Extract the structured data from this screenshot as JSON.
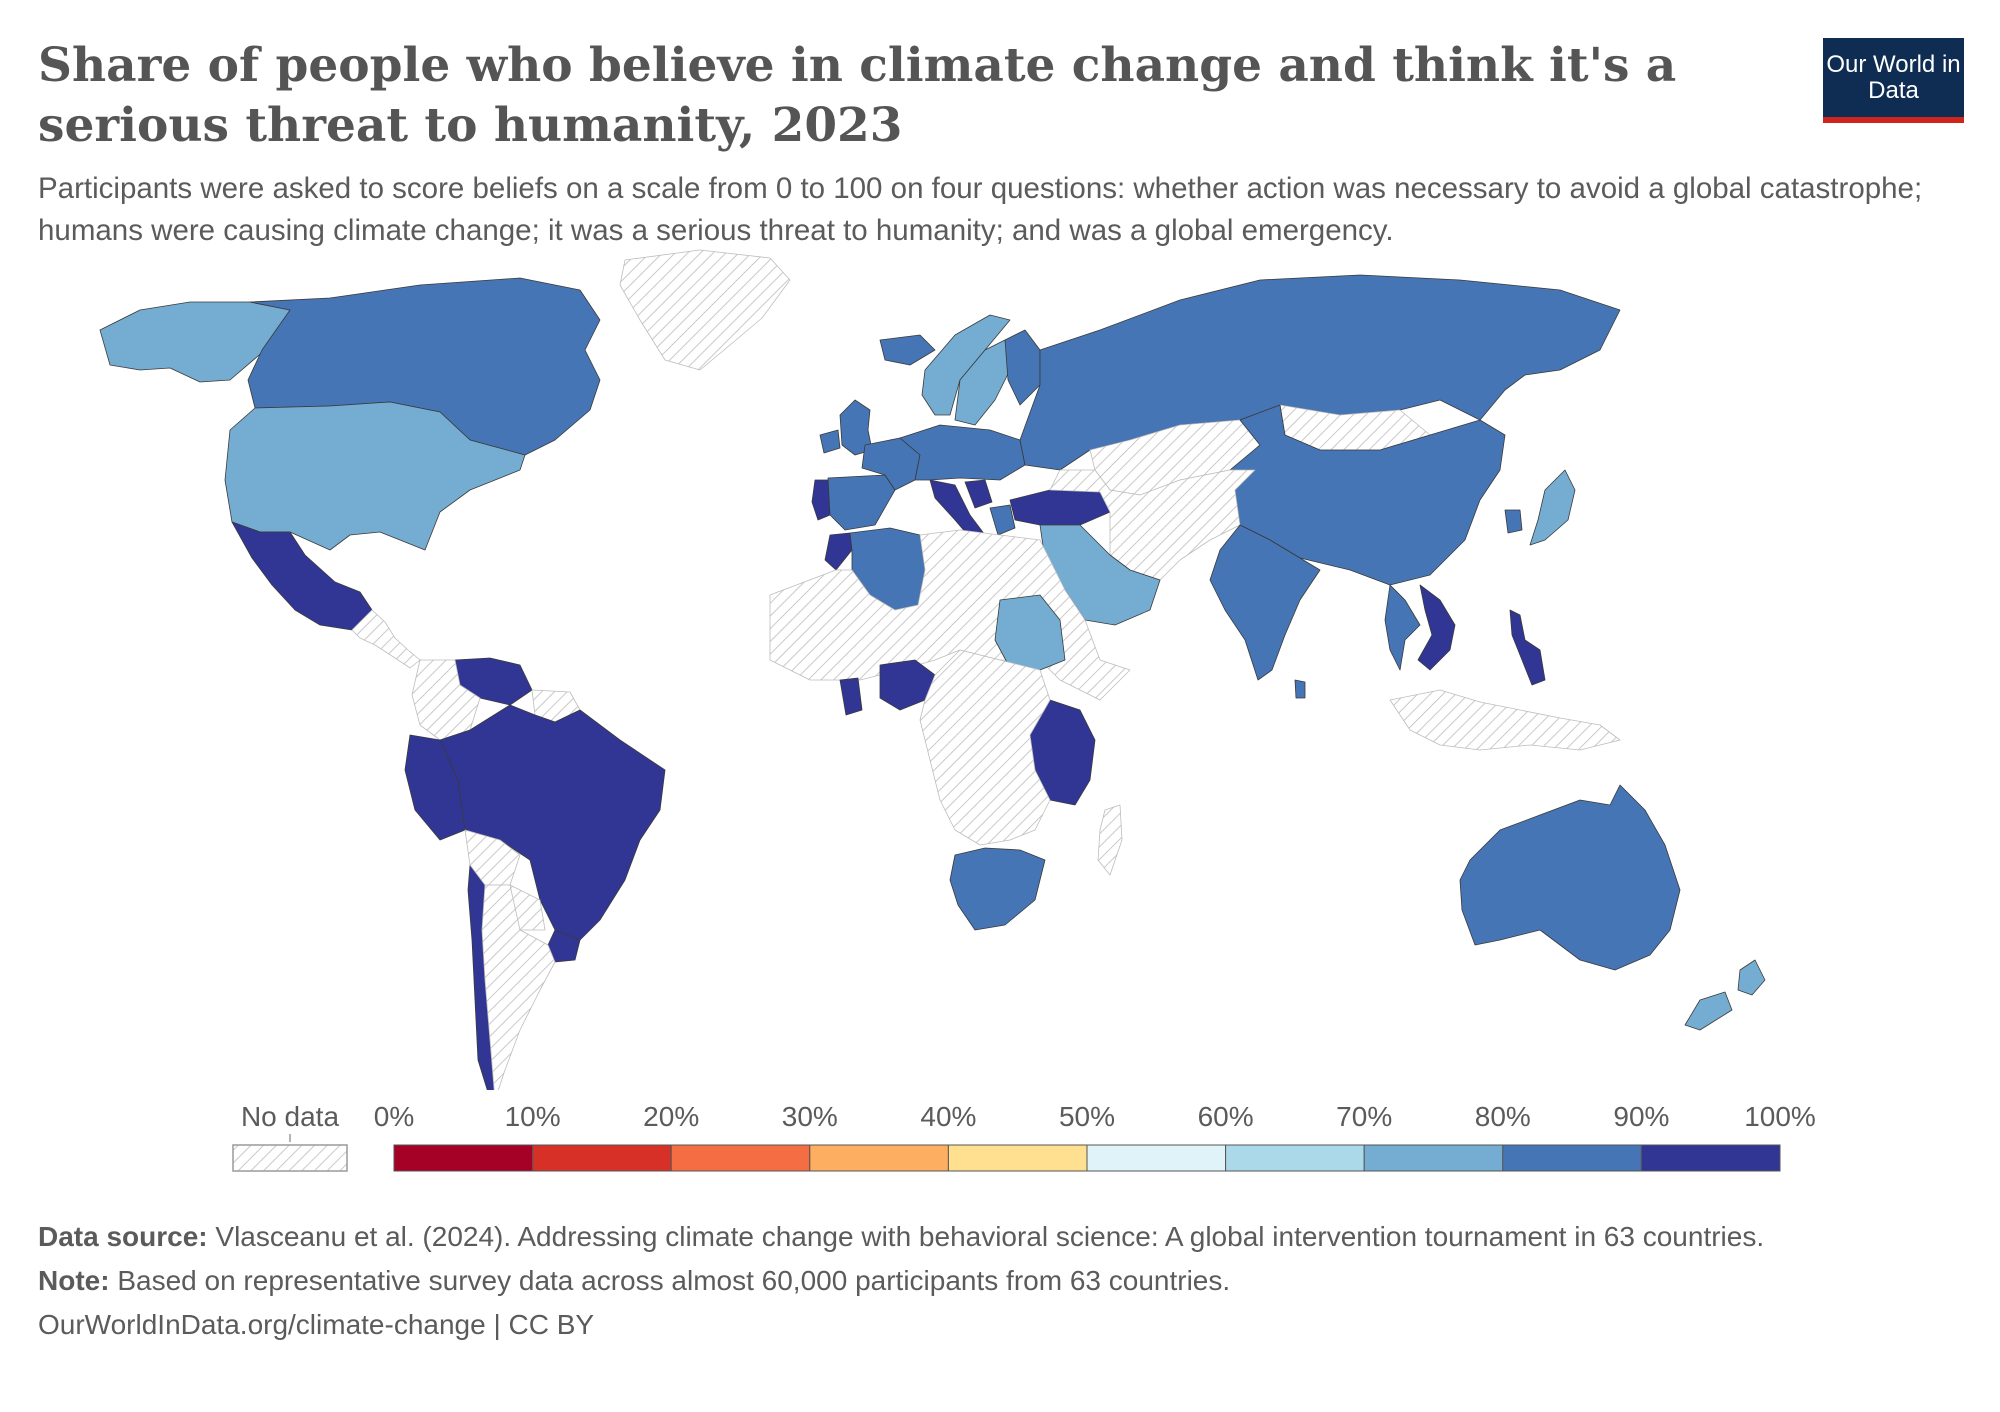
{
  "header": {
    "title": "Share of people who believe in climate change and think it's a serious threat to humanity, 2023",
    "subtitle": "Participants were asked to score beliefs on a scale from 0 to 100 on four questions: whether action was necessary to avoid a global catastrophe; humans were causing climate change; it was a serious threat to humanity; and was a global emergency."
  },
  "logo": {
    "text": "Our World in Data",
    "bg_color": "#0f2d52",
    "accent_color": "#ce261e"
  },
  "legend": {
    "no_data_label": "No data",
    "tick_labels": [
      "0%",
      "10%",
      "20%",
      "30%",
      "40%",
      "50%",
      "60%",
      "70%",
      "80%",
      "90%",
      "100%"
    ],
    "bins": [
      {
        "from": 0,
        "to": 10,
        "color": "#a50026"
      },
      {
        "from": 10,
        "to": 20,
        "color": "#d73027"
      },
      {
        "from": 20,
        "to": 30,
        "color": "#f46d43"
      },
      {
        "from": 30,
        "to": 40,
        "color": "#fdae61"
      },
      {
        "from": 40,
        "to": 50,
        "color": "#fee090"
      },
      {
        "from": 50,
        "to": 60,
        "color": "#e0f3f8"
      },
      {
        "from": 60,
        "to": 70,
        "color": "#abd9e9"
      },
      {
        "from": 70,
        "to": 80,
        "color": "#74add1"
      },
      {
        "from": 80,
        "to": 90,
        "color": "#4575b4"
      },
      {
        "from": 90,
        "to": 100,
        "color": "#313695"
      }
    ]
  },
  "map_data": {
    "type": "choropleth",
    "year": 2023,
    "unit": "%",
    "regions": [
      {
        "name": "Alaska",
        "bin": "70-80"
      },
      {
        "name": "Canada",
        "bin": "80-90"
      },
      {
        "name": "Greenland",
        "bin": "no data"
      },
      {
        "name": "United States",
        "bin": "70-80"
      },
      {
        "name": "Mexico",
        "bin": "90-100"
      },
      {
        "name": "Central America",
        "bin": "no data"
      },
      {
        "name": "Venezuela",
        "bin": "90-100"
      },
      {
        "name": "Colombia",
        "bin": "no data"
      },
      {
        "name": "Guyana",
        "bin": "no data"
      },
      {
        "name": "Peru",
        "bin": "90-100"
      },
      {
        "name": "Brazil",
        "bin": "90-100"
      },
      {
        "name": "Uruguay",
        "bin": "90-100"
      },
      {
        "name": "Chile",
        "bin": "90-100"
      },
      {
        "name": "Bolivia",
        "bin": "no data"
      },
      {
        "name": "Paraguay",
        "bin": "no data"
      },
      {
        "name": "Argentina",
        "bin": "no data"
      },
      {
        "name": "Iceland",
        "bin": "80-90"
      },
      {
        "name": "Norway",
        "bin": "70-80"
      },
      {
        "name": "Sweden",
        "bin": "70-80"
      },
      {
        "name": "Finland",
        "bin": "80-90"
      },
      {
        "name": "United Kingdom",
        "bin": "80-90"
      },
      {
        "name": "Ireland",
        "bin": "80-90"
      },
      {
        "name": "Portugal",
        "bin": "90-100"
      },
      {
        "name": "Spain",
        "bin": "80-90"
      },
      {
        "name": "France",
        "bin": "80-90"
      },
      {
        "name": "Central Europe",
        "bin": "80-90"
      },
      {
        "name": "Italy",
        "bin": "90-100"
      },
      {
        "name": "Serbia",
        "bin": "90-100"
      },
      {
        "name": "Greece",
        "bin": "80-90"
      },
      {
        "name": "Turkey",
        "bin": "90-100"
      },
      {
        "name": "Russia",
        "bin": "80-90"
      },
      {
        "name": "Kazakhstan",
        "bin": "no data"
      },
      {
        "name": "Mongolia",
        "bin": "no data"
      },
      {
        "name": "China",
        "bin": "80-90"
      },
      {
        "name": "South Korea",
        "bin": "80-90"
      },
      {
        "name": "Japan",
        "bin": "70-80"
      },
      {
        "name": "Middle East",
        "bin": "no data"
      },
      {
        "name": "Saudi Arabia",
        "bin": "70-80"
      },
      {
        "name": "India",
        "bin": "80-90"
      },
      {
        "name": "Sri Lanka",
        "bin": "80-90"
      },
      {
        "name": "Thailand",
        "bin": "80-90"
      },
      {
        "name": "Vietnam",
        "bin": "90-100"
      },
      {
        "name": "Philippines",
        "bin": "90-100"
      },
      {
        "name": "Indonesia",
        "bin": "no data"
      },
      {
        "name": "Australia",
        "bin": "80-90"
      },
      {
        "name": "New Zealand",
        "bin": "70-80"
      },
      {
        "name": "Morocco",
        "bin": "90-100"
      },
      {
        "name": "Algeria",
        "bin": "80-90"
      },
      {
        "name": "Sahara and Sahel",
        "bin": "no data"
      },
      {
        "name": "Sudan",
        "bin": "70-80"
      },
      {
        "name": "Ghana",
        "bin": "90-100"
      },
      {
        "name": "Nigeria",
        "bin": "90-100"
      },
      {
        "name": "Kenya and Tanzania",
        "bin": "90-100"
      },
      {
        "name": "Central and Southern Africa",
        "bin": "no data"
      },
      {
        "name": "South Africa",
        "bin": "80-90"
      },
      {
        "name": "Madagascar",
        "bin": "no data"
      }
    ]
  },
  "footer": {
    "source_label": "Data source:",
    "source_text": "Vlasceanu et al. (2024). Addressing climate change with behavioral science: A global intervention tournament in 63 countries.",
    "note_label": "Note:",
    "note_text": "Based on representative survey data across almost 60,000 participants from 63 countries.",
    "url_text": "OurWorldInData.org/climate-change | CC BY"
  }
}
